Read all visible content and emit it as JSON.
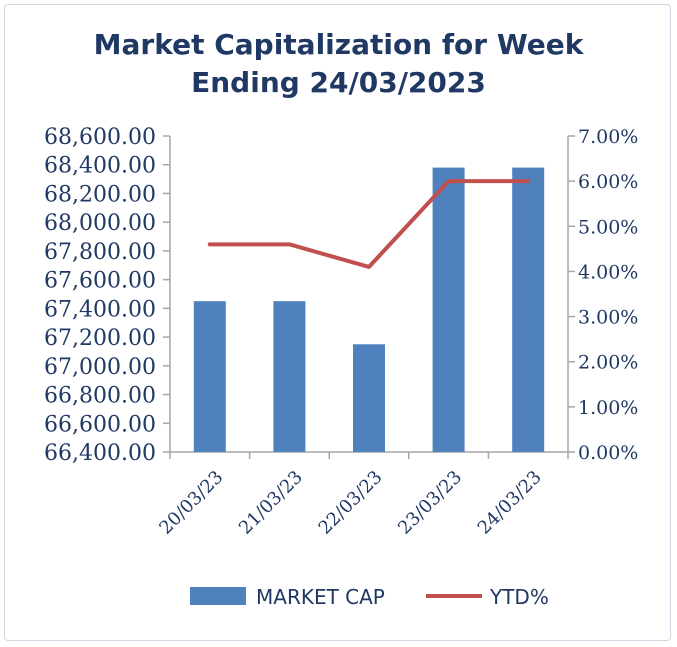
{
  "chart_data": {
    "type": "bar",
    "title": "Market Capitalization for Week Ending 24/03/2023",
    "title_lines": [
      "Market Capitalization for Week",
      "Ending 24/03/2023"
    ],
    "categories": [
      "20/03/23",
      "21/03/23",
      "22/03/23",
      "23/03/23",
      "24/03/23"
    ],
    "series": [
      {
        "name": "MARKET CAP",
        "type": "bar",
        "axis": "left",
        "color": "#4f81bd",
        "values": [
          67450,
          67450,
          67150,
          68380,
          68380
        ]
      },
      {
        "name": "YTD%",
        "type": "line",
        "axis": "right",
        "color": "#c0504d",
        "values": [
          4.6,
          4.6,
          4.1,
          6.0,
          6.0
        ]
      }
    ],
    "y_left": {
      "ylim": [
        66400,
        68600
      ],
      "ticks": [
        66400,
        66600,
        66800,
        67000,
        67200,
        67400,
        67600,
        67800,
        68000,
        68200,
        68400,
        68600
      ],
      "tick_labels": [
        "66,400.00",
        "66,600.00",
        "66,800.00",
        "67,000.00",
        "67,200.00",
        "67,400.00",
        "67,600.00",
        "67,800.00",
        "68,000.00",
        "68,200.00",
        "68,400.00",
        "68,600.00"
      ]
    },
    "y_right": {
      "ylim": [
        0,
        7
      ],
      "ticks": [
        0,
        1,
        2,
        3,
        4,
        5,
        6,
        7
      ],
      "tick_labels": [
        "0.00%",
        "1.00%",
        "2.00%",
        "3.00%",
        "4.00%",
        "5.00%",
        "6.00%",
        "7.00%"
      ]
    },
    "grid": false,
    "legend_position": "bottom",
    "legend": [
      "MARKET CAP",
      "YTD%"
    ]
  }
}
